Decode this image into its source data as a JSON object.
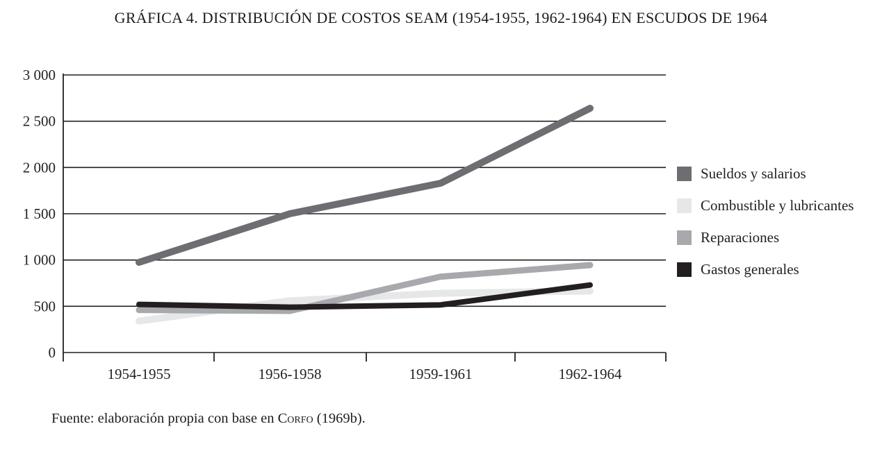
{
  "title": "GRÁFICA 4. DISTRIBUCIÓN DE COSTOS SEAM (1954-1955, 1962-1964) EN ESCUDOS DE 1964",
  "source": {
    "prefix": "Fuente: elaboración propia con base en ",
    "org": "Corfo",
    "suffix": " (1969b)."
  },
  "colors": {
    "axis": "#231f20",
    "text": "#231f20"
  },
  "chart_data": {
    "type": "line",
    "title": "GRÁFICA 4. DISTRIBUCIÓN DE COSTOS SEAM (1954-1955, 1962-1964) EN ESCUDOS DE 1964",
    "categories": [
      "1954-1955",
      "1956-1958",
      "1959-1961",
      "1962-1964"
    ],
    "series": [
      {
        "name": "Sueldos y salarios",
        "color": "#6d6e71",
        "stroke_width": 10,
        "values": [
          975,
          1500,
          1830,
          2640
        ]
      },
      {
        "name": "Combustible y lubricantes",
        "color": "#e6e7e8",
        "stroke_width": 10,
        "values": [
          340,
          560,
          640,
          665
        ]
      },
      {
        "name": "Reparaciones",
        "color": "#a7a9ac",
        "stroke_width": 9,
        "values": [
          460,
          450,
          820,
          945
        ]
      },
      {
        "name": "Gastos generales",
        "color": "#231f20",
        "stroke_width": 8,
        "values": [
          520,
          490,
          515,
          730
        ]
      }
    ],
    "xlabel": "",
    "ylabel": "",
    "ylim": [
      0,
      3000
    ],
    "ytick_step": 500,
    "ytick_labels_top_down": [
      "3 000",
      "2 500",
      "2 000",
      "1 500",
      "1 000",
      "500",
      "0"
    ],
    "grid": true,
    "legend_position": "right"
  }
}
